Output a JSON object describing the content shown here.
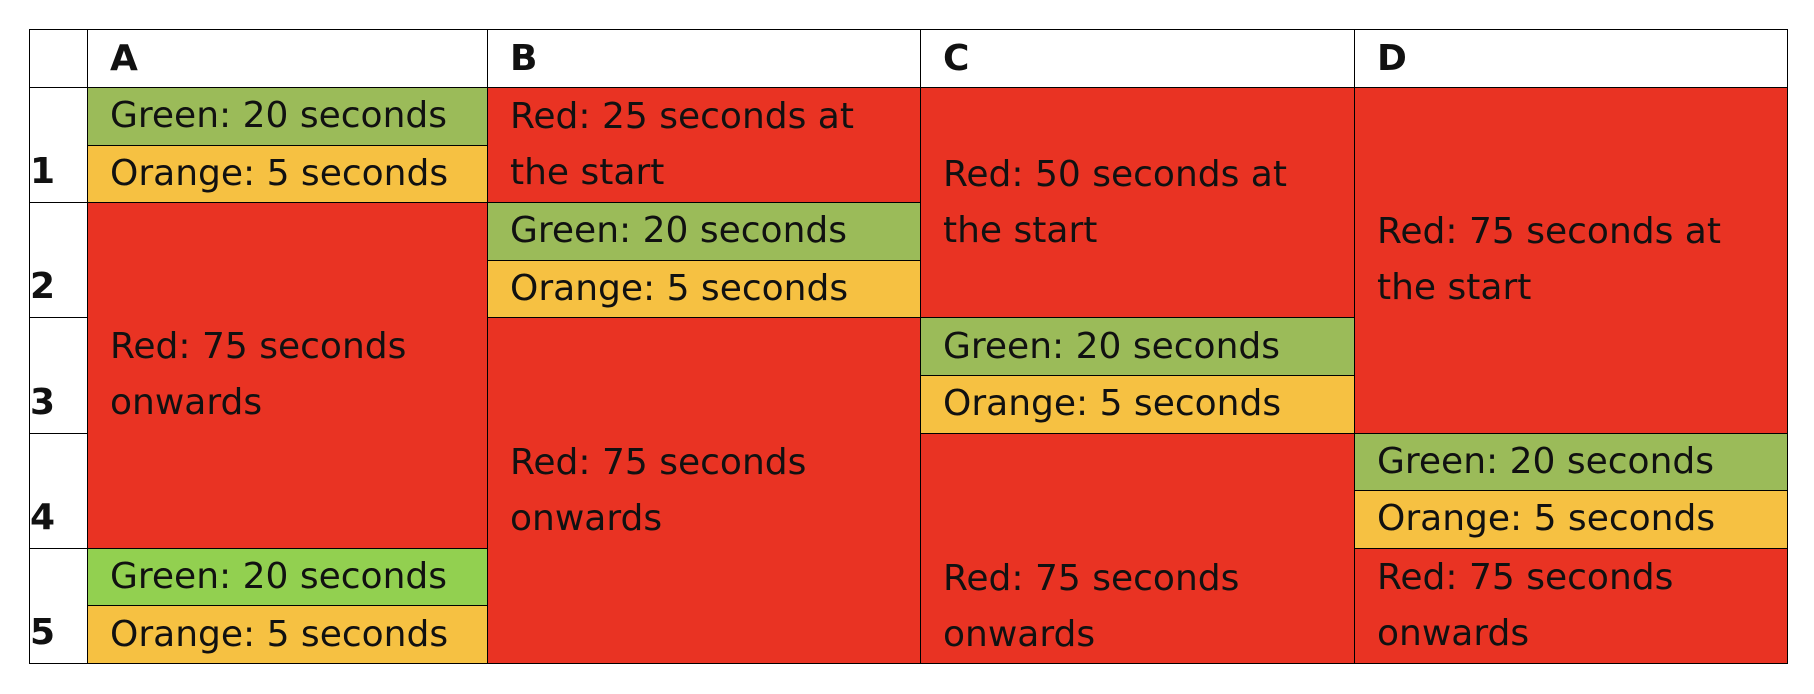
{
  "table": {
    "columns": [
      "A",
      "B",
      "C",
      "D"
    ],
    "rows": [
      "1",
      "2",
      "3",
      "4",
      "5"
    ],
    "cells": [
      [
        {
          "text": "Green: 20 seconds",
          "color": "#9bbb59"
        },
        {
          "text": "Orange: 5 seconds",
          "color": "#f6c142"
        },
        {
          "text": "Red: 75 seconds onwards",
          "color": "#e93323"
        },
        {
          "text": "Green: 20 seconds",
          "color": "#92d050"
        },
        {
          "text": "Orange: 5 seconds",
          "color": "#f6c142"
        }
      ],
      [
        {
          "text": "Red: 25 seconds at the start",
          "color": "#e93323"
        },
        {
          "text": "Green: 20 seconds",
          "color": "#9bbb59"
        },
        {
          "text": "Orange: 5 seconds",
          "color": "#f6c142"
        },
        {
          "text": "Red: 75 seconds onwards",
          "color": "#e93323"
        }
      ],
      [
        {
          "text": "Red: 50 seconds at the start",
          "color": "#e93323"
        },
        {
          "text": "Green: 20 seconds",
          "color": "#9bbb59"
        },
        {
          "text": "Orange: 5 seconds",
          "color": "#f6c142"
        },
        {
          "text": "Red: 75 seconds onwards",
          "color": "#e93323"
        }
      ],
      [
        {
          "text": "Red: 75 seconds at the start",
          "color": "#e93323"
        },
        {
          "text": "Green: 20 seconds",
          "color": "#9bbb59"
        },
        {
          "text": "Orange: 5 seconds",
          "color": "#f6c142"
        },
        {
          "text": "Red: 75 seconds onwards",
          "color": "#e93323"
        }
      ]
    ]
  }
}
